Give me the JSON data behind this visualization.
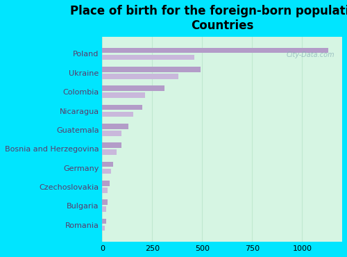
{
  "title": "Place of birth for the foreign-born population -\nCountries",
  "categories": [
    "Poland",
    "Ukraine",
    "Colombia",
    "Nicaragua",
    "Guatemala",
    "Bosnia and Herzegovina",
    "Germany",
    "Czechoslovakia",
    "Bulgaria",
    "Romania"
  ],
  "values_dark": [
    1130,
    490,
    310,
    200,
    130,
    95,
    55,
    35,
    25,
    18
  ],
  "values_light": [
    460,
    380,
    215,
    155,
    95,
    70,
    42,
    28,
    20,
    14
  ],
  "bar_color_dark": "#b39cc8",
  "bar_color_light": "#c9b8db",
  "background_color": "#00e5ff",
  "plot_bg_color": "#d6f5e3",
  "grid_color": "#c0e8d0",
  "xlabel_ticks": [
    0,
    250,
    500,
    750,
    1000
  ],
  "xlim": [
    0,
    1200
  ],
  "watermark": "City-Data.com",
  "title_fontsize": 12,
  "tick_fontsize": 8,
  "label_color": "#5a3a6a"
}
